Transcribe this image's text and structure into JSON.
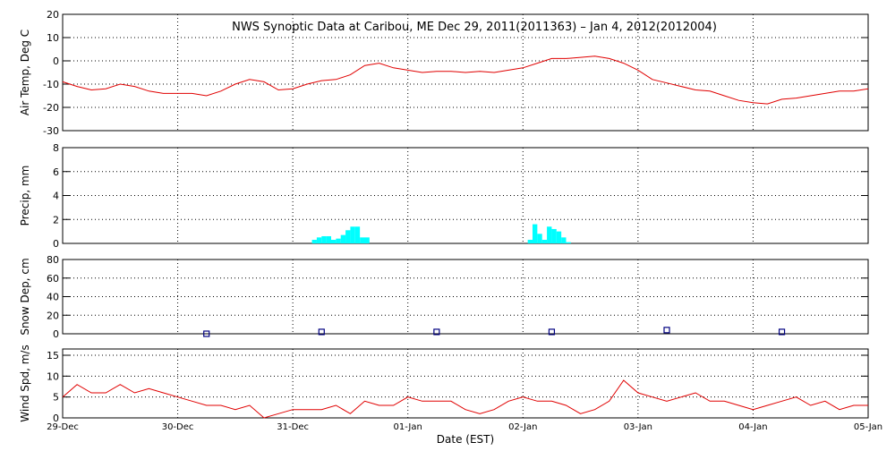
{
  "chart_data": [
    {
      "type": "line",
      "title": "NWS Synoptic Data at Caribou, ME   Dec 29, 2011(2011363) – Jan  4, 2012(2012004)",
      "y_label": "Air Temp, Deg C",
      "x": [
        0,
        3,
        6,
        9,
        12,
        15,
        18,
        21,
        24,
        27,
        30,
        33,
        36,
        39,
        42,
        45,
        48,
        51,
        54,
        57,
        60,
        63,
        66,
        69,
        72,
        75,
        78,
        81,
        84,
        87,
        90,
        93,
        96,
        99,
        102,
        105,
        108,
        111,
        114,
        117,
        120,
        123,
        126,
        129,
        132,
        135,
        138,
        141,
        144,
        147,
        150,
        153,
        156,
        159,
        162,
        165,
        168
      ],
      "series": [
        {
          "color": "#e00000",
          "values": [
            -9,
            -11,
            -12.5,
            -12,
            -10,
            -11,
            -13,
            -14,
            -14,
            -14,
            -15,
            -13,
            -10,
            -8,
            -9,
            -12.5,
            -12,
            -10,
            -8.5,
            -8,
            -6,
            -2,
            -1,
            -3,
            -4,
            -5,
            -4.5,
            -4.5,
            -5,
            -4.5,
            -5,
            -4,
            -3,
            -1,
            1,
            1,
            1.5,
            2,
            1,
            -1,
            -4,
            -8,
            -9.5,
            -11,
            -12.5,
            -13,
            -15,
            -17,
            -18,
            -18.5,
            -16.5,
            -16,
            -15,
            -14,
            -13,
            -13,
            -12
          ]
        }
      ],
      "xlim": [
        0,
        168
      ],
      "ylim": [
        -30,
        20
      ],
      "yticks": [
        -30,
        -20,
        -10,
        0,
        10,
        20
      ],
      "grid": true
    },
    {
      "type": "bar",
      "y_label": "Precip, mm",
      "x": [
        52,
        53,
        54,
        55,
        56,
        57,
        58,
        59,
        60,
        61,
        62,
        63,
        97,
        98,
        99,
        100,
        101,
        102,
        103,
        104,
        105
      ],
      "series": [
        {
          "color": "#00ffff",
          "values": [
            0.3,
            0.5,
            0.6,
            0.6,
            0.3,
            0.4,
            0.7,
            1.1,
            1.4,
            1.4,
            0.5,
            0.5,
            0.3,
            1.6,
            0.8,
            0.3,
            1.4,
            1.2,
            1.0,
            0.5,
            0.1
          ]
        }
      ],
      "xlim": [
        0,
        168
      ],
      "ylim": [
        0,
        8
      ],
      "yticks": [
        0,
        2,
        4,
        6,
        8
      ],
      "grid": true
    },
    {
      "type": "scatter",
      "y_label": "Snow Dep, cm",
      "x": [
        30,
        54,
        78,
        102,
        126,
        150
      ],
      "series": [
        {
          "color": "#000080",
          "values": [
            0,
            2,
            2,
            2,
            4,
            2
          ]
        }
      ],
      "xlim": [
        0,
        168
      ],
      "ylim": [
        0,
        80
      ],
      "yticks": [
        0,
        20,
        40,
        60,
        80
      ],
      "grid": true
    },
    {
      "type": "line",
      "y_label": "Wind Spd, m/s",
      "x_label": "Date (EST)",
      "x": [
        0,
        3,
        6,
        9,
        12,
        15,
        18,
        21,
        24,
        27,
        30,
        33,
        36,
        39,
        42,
        45,
        48,
        51,
        54,
        57,
        60,
        63,
        66,
        69,
        72,
        75,
        78,
        81,
        84,
        87,
        90,
        93,
        96,
        99,
        102,
        105,
        108,
        111,
        114,
        117,
        120,
        123,
        126,
        129,
        132,
        135,
        138,
        141,
        144,
        147,
        150,
        153,
        156,
        159,
        162,
        165,
        168
      ],
      "series": [
        {
          "color": "#e00000",
          "values": [
            5,
            8,
            6,
            6,
            8,
            6,
            7,
            6,
            5,
            4,
            3,
            3,
            2,
            3,
            0,
            1,
            2,
            2,
            2,
            3,
            1,
            4,
            3,
            3,
            5,
            4,
            4,
            4,
            2,
            1,
            2,
            4,
            5,
            4,
            4,
            3,
            1,
            2,
            4,
            9,
            6,
            5,
            4,
            5,
            6,
            4,
            4,
            3,
            2,
            3,
            4,
            5,
            3,
            4,
            2,
            3,
            3
          ]
        }
      ],
      "xlim": [
        0,
        168
      ],
      "ylim": [
        0,
        16.5
      ],
      "yticks": [
        0,
        5,
        10,
        15
      ],
      "grid": true,
      "xticks": [
        {
          "value": 0,
          "label": "29-Dec"
        },
        {
          "value": 24,
          "label": "30-Dec"
        },
        {
          "value": 48,
          "label": "31-Dec"
        },
        {
          "value": 72,
          "label": "01-Jan"
        },
        {
          "value": 96,
          "label": "02-Jan"
        },
        {
          "value": 120,
          "label": "03-Jan"
        },
        {
          "value": 144,
          "label": "04-Jan"
        },
        {
          "value": 168,
          "label": "05-Jan"
        }
      ]
    }
  ]
}
